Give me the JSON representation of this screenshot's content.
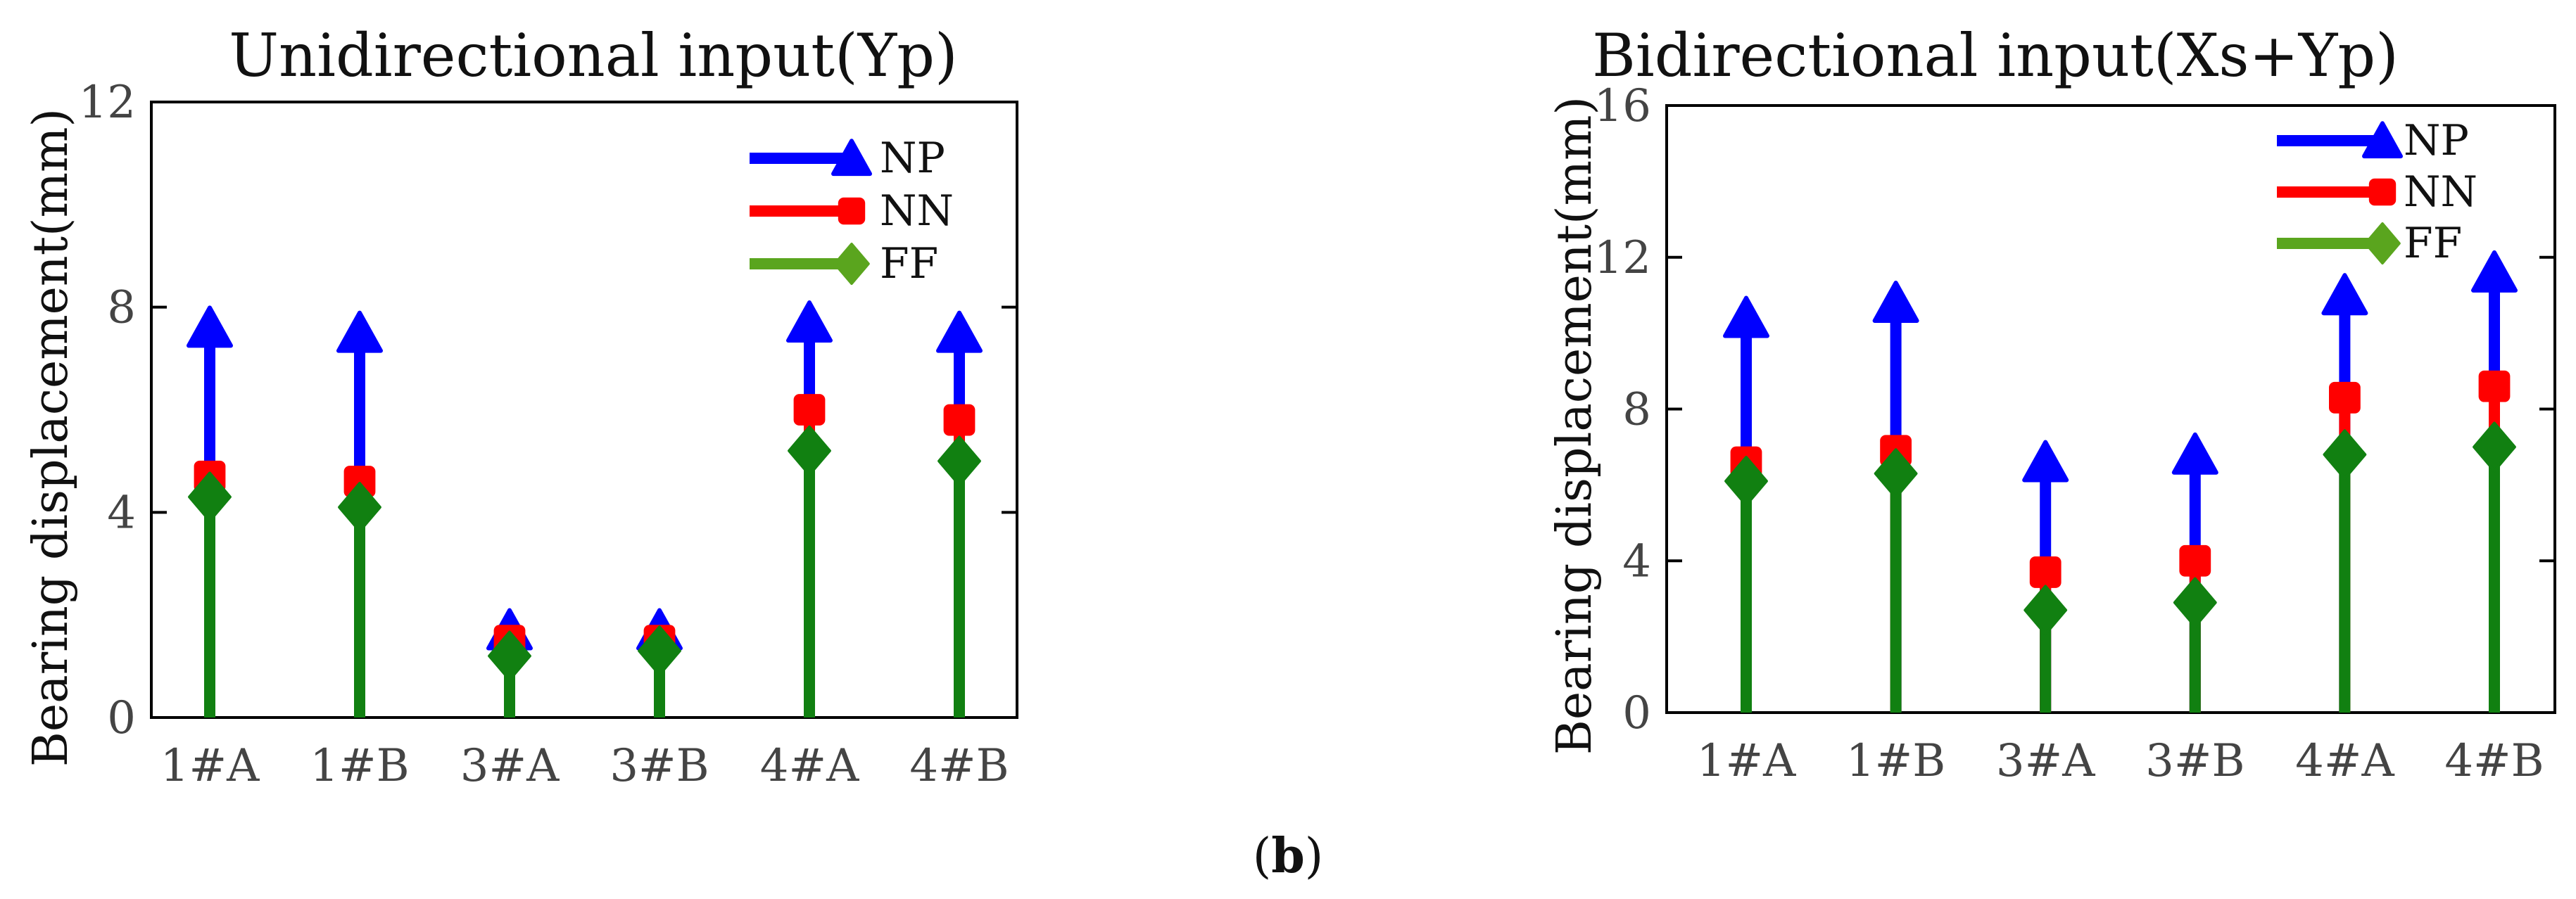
{
  "caption": {
    "open": "(",
    "label": "b",
    "close": ")"
  },
  "chart_data": [
    {
      "type": "stem",
      "title": "Unidirectional input(Yp)",
      "xlabel": "",
      "ylabel": "Bearing displacement(mm)",
      "categories": [
        "1#A",
        "1#B",
        "3#A",
        "3#B",
        "4#A",
        "4#B"
      ],
      "ylim": [
        0,
        12
      ],
      "yticks": [
        0,
        4,
        8,
        12
      ],
      "legend_position": "top-right",
      "series": [
        {
          "name": "NP",
          "marker": "triangle",
          "color": "#0000ff",
          "values": [
            7.6,
            7.5,
            1.7,
            1.7,
            7.7,
            7.5
          ]
        },
        {
          "name": "NN",
          "marker": "square",
          "color": "#ff0000",
          "values": [
            4.7,
            4.6,
            1.5,
            1.5,
            6.0,
            5.8
          ]
        },
        {
          "name": "FF",
          "marker": "diamond",
          "color": "#118011",
          "legend_color": "#5aa51e",
          "values": [
            4.3,
            4.1,
            1.2,
            1.3,
            5.2,
            5.0
          ]
        }
      ]
    },
    {
      "type": "stem",
      "title": "Bidirectional input(Xs+Yp)",
      "xlabel": "",
      "ylabel": "Bearing displacement(mm)",
      "categories": [
        "1#A",
        "1#B",
        "3#A",
        "3#B",
        "4#A",
        "4#B"
      ],
      "ylim": [
        0,
        16
      ],
      "yticks": [
        0,
        4,
        8,
        12,
        16
      ],
      "legend_position": "top-right",
      "series": [
        {
          "name": "NP",
          "marker": "triangle",
          "color": "#0000ff",
          "values": [
            10.4,
            10.8,
            6.6,
            6.8,
            11.0,
            11.6
          ]
        },
        {
          "name": "NN",
          "marker": "square",
          "color": "#ff0000",
          "values": [
            6.6,
            6.9,
            3.7,
            4.0,
            8.3,
            8.6
          ]
        },
        {
          "name": "FF",
          "marker": "diamond",
          "color": "#118011",
          "legend_color": "#5aa51e",
          "values": [
            6.1,
            6.3,
            2.7,
            2.9,
            6.8,
            7.0
          ]
        }
      ]
    }
  ]
}
